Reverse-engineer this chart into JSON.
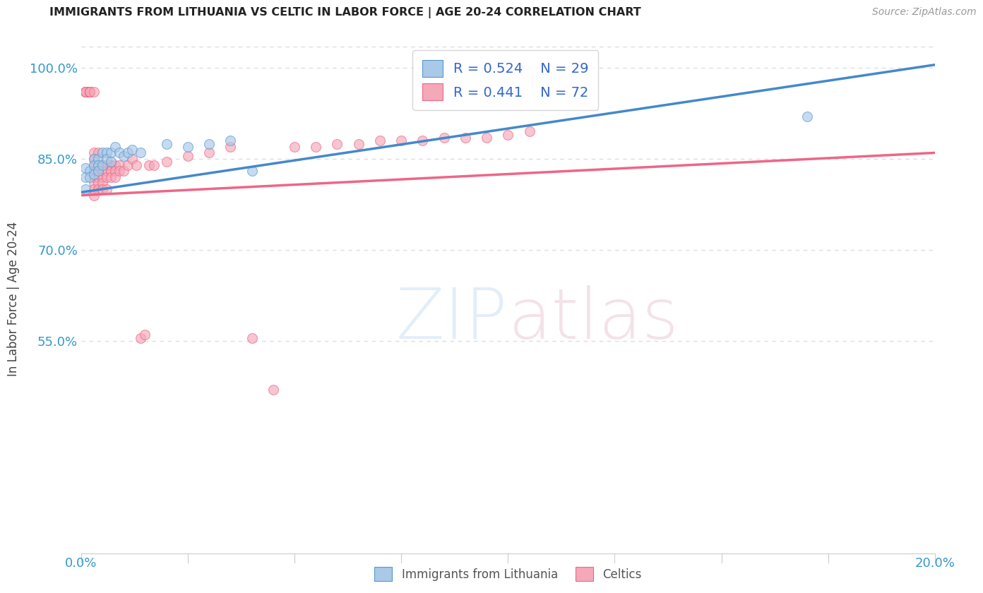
{
  "title": "IMMIGRANTS FROM LITHUANIA VS CELTIC IN LABOR FORCE | AGE 20-24 CORRELATION CHART",
  "source": "Source: ZipAtlas.com",
  "ylabel": "In Labor Force | Age 20-24",
  "xlim": [
    0.0,
    0.2
  ],
  "ylim": [
    0.2,
    1.04
  ],
  "xticks": [
    0.0,
    0.025,
    0.05,
    0.075,
    0.1,
    0.125,
    0.15,
    0.175,
    0.2
  ],
  "xticklabels": [
    "0.0%",
    "",
    "",
    "",
    "",
    "",
    "",
    "",
    "20.0%"
  ],
  "yticks": [
    0.55,
    0.7,
    0.85,
    1.0
  ],
  "yticklabels": [
    "55.0%",
    "70.0%",
    "85.0%",
    "100.0%"
  ],
  "grid_color": "#dddddd",
  "background_color": "#ffffff",
  "lithuania_color": "#aac8e8",
  "celtic_color": "#f4a8b8",
  "lithuania_edge_color": "#5599cc",
  "celtic_edge_color": "#ee6688",
  "lithuania_line_color": "#4488cc",
  "celtic_line_color": "#ee6688",
  "r_lithuania": 0.524,
  "n_lithuania": 29,
  "r_celtic": 0.441,
  "n_celtic": 72,
  "legend_r_color": "#3366cc",
  "lith_line_x0": 0.0,
  "lith_line_y0": 0.795,
  "lith_line_x1": 0.2,
  "lith_line_y1": 1.005,
  "celt_line_x0": 0.0,
  "celt_line_y0": 0.79,
  "celt_line_x1": 0.2,
  "celt_line_y1": 0.86,
  "lithuania_points_x": [
    0.001,
    0.001,
    0.001,
    0.002,
    0.002,
    0.003,
    0.003,
    0.003,
    0.004,
    0.004,
    0.004,
    0.005,
    0.005,
    0.006,
    0.006,
    0.007,
    0.007,
    0.008,
    0.009,
    0.01,
    0.011,
    0.012,
    0.014,
    0.02,
    0.025,
    0.03,
    0.035,
    0.04,
    0.17
  ],
  "lithuania_points_y": [
    0.835,
    0.82,
    0.8,
    0.83,
    0.82,
    0.85,
    0.84,
    0.825,
    0.85,
    0.84,
    0.83,
    0.86,
    0.84,
    0.86,
    0.85,
    0.86,
    0.845,
    0.87,
    0.86,
    0.855,
    0.86,
    0.865,
    0.86,
    0.875,
    0.87,
    0.875,
    0.88,
    0.83,
    0.92
  ],
  "celtic_points_x": [
    0.001,
    0.001,
    0.001,
    0.001,
    0.001,
    0.001,
    0.002,
    0.002,
    0.002,
    0.002,
    0.002,
    0.002,
    0.002,
    0.003,
    0.003,
    0.003,
    0.003,
    0.003,
    0.003,
    0.003,
    0.003,
    0.003,
    0.004,
    0.004,
    0.004,
    0.004,
    0.004,
    0.004,
    0.005,
    0.005,
    0.005,
    0.005,
    0.005,
    0.006,
    0.006,
    0.006,
    0.006,
    0.007,
    0.007,
    0.007,
    0.007,
    0.008,
    0.008,
    0.008,
    0.009,
    0.009,
    0.01,
    0.011,
    0.012,
    0.013,
    0.014,
    0.015,
    0.016,
    0.017,
    0.02,
    0.025,
    0.03,
    0.035,
    0.04,
    0.045,
    0.05,
    0.055,
    0.06,
    0.065,
    0.07,
    0.075,
    0.08,
    0.085,
    0.09,
    0.095,
    0.1,
    0.105
  ],
  "celtic_points_y": [
    0.96,
    0.96,
    0.96,
    0.96,
    0.96,
    0.96,
    0.96,
    0.96,
    0.96,
    0.96,
    0.96,
    0.96,
    0.96,
    0.86,
    0.85,
    0.84,
    0.83,
    0.82,
    0.81,
    0.8,
    0.79,
    0.96,
    0.86,
    0.84,
    0.83,
    0.82,
    0.81,
    0.8,
    0.84,
    0.83,
    0.82,
    0.81,
    0.8,
    0.84,
    0.83,
    0.82,
    0.8,
    0.84,
    0.84,
    0.83,
    0.82,
    0.84,
    0.83,
    0.82,
    0.84,
    0.83,
    0.83,
    0.84,
    0.85,
    0.84,
    0.555,
    0.56,
    0.84,
    0.84,
    0.845,
    0.855,
    0.86,
    0.87,
    0.555,
    0.47,
    0.87,
    0.87,
    0.875,
    0.875,
    0.88,
    0.88,
    0.88,
    0.885,
    0.885,
    0.885,
    0.89,
    0.895
  ]
}
